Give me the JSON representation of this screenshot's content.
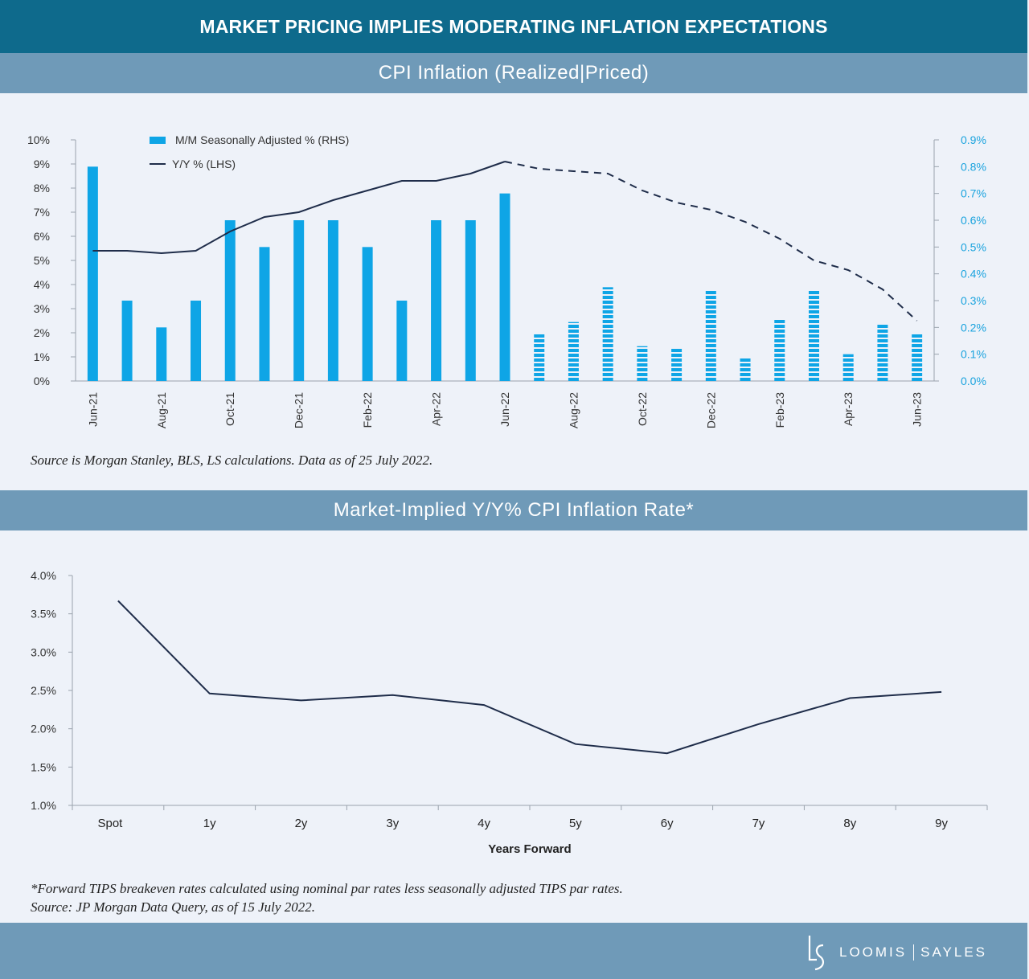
{
  "banner": {
    "title": "MARKET PRICING IMPLIES MODERATING INFLATION EXPECTATIONS"
  },
  "chart1_header": "CPI Inflation (Realized|Priced)",
  "chart2_header": "Market-Implied Y/Y% CPI Inflation Rate*",
  "source1": "Source is Morgan Stanley, BLS, LS calculations. Data as of 25 July 2022.",
  "footnote2_line1": "*Forward TIPS breakeven rates calculated using nominal par rates less seasonally adjusted TIPS par rates.",
  "footnote2_line2": "Source: JP Morgan Data Query, as of 15 July 2022.",
  "logo": {
    "left": "LOOMIS",
    "right": "SAYLES"
  },
  "colors": {
    "bar": "#0ea5e6",
    "line": "#1f2d4a",
    "banner": "#0e6a8c",
    "header": "#6f9ab8",
    "rhs_text": "#1aa3de"
  },
  "chart_data": [
    {
      "type": "bar+line",
      "title": "CPI Inflation (Realized|Priced)",
      "categories": [
        "Jun-21",
        "Jul-21",
        "Aug-21",
        "Sep-21",
        "Oct-21",
        "Nov-21",
        "Dec-21",
        "Jan-22",
        "Feb-22",
        "Mar-22",
        "Apr-22",
        "May-22",
        "Jun-22",
        "Jul-22",
        "Aug-22",
        "Sep-22",
        "Oct-22",
        "Nov-22",
        "Dec-22",
        "Jan-23",
        "Feb-23",
        "Mar-23",
        "Apr-23",
        "May-23",
        "Jun-23"
      ],
      "tick_labels": [
        "Jun-21",
        "Aug-21",
        "Oct-21",
        "Dec-21",
        "Feb-22",
        "Apr-22",
        "Jun-22",
        "Aug-22",
        "Oct-22",
        "Dec-22",
        "Feb-23",
        "Apr-23",
        "Jun-23"
      ],
      "realized_through": "Jun-22",
      "series": [
        {
          "name": "M/M Seasonally Adjusted % (RHS)",
          "axis": "right",
          "kind": "bar",
          "values": [
            0.8,
            0.3,
            0.2,
            0.3,
            0.6,
            0.5,
            0.6,
            0.6,
            0.5,
            0.3,
            0.6,
            0.6,
            0.7,
            0.18,
            0.22,
            0.35,
            0.13,
            0.12,
            0.34,
            0.09,
            0.23,
            0.34,
            0.1,
            0.21,
            0.18
          ]
        },
        {
          "name": "Y/Y % (LHS)",
          "axis": "left",
          "kind": "line",
          "values": [
            5.4,
            5.4,
            5.3,
            5.4,
            6.2,
            6.8,
            7.0,
            7.5,
            7.9,
            8.3,
            8.3,
            8.6,
            9.1,
            8.8,
            8.7,
            8.6,
            7.9,
            7.4,
            7.1,
            6.6,
            5.9,
            5.0,
            4.6,
            3.8,
            2.5
          ]
        }
      ],
      "left_axis": {
        "ylim": [
          0,
          10
        ],
        "ticks": [
          "0%",
          "1%",
          "2%",
          "3%",
          "4%",
          "5%",
          "6%",
          "7%",
          "8%",
          "9%",
          "10%"
        ]
      },
      "right_axis": {
        "ylim": [
          0,
          0.9
        ],
        "ticks": [
          "0.0%",
          "0.1%",
          "0.2%",
          "0.3%",
          "0.4%",
          "0.5%",
          "0.6%",
          "0.7%",
          "0.8%",
          "0.9%"
        ]
      },
      "legend": [
        "M/M Seasonally Adjusted % (RHS)",
        "Y/Y % (LHS)"
      ],
      "legend_position": "top-left"
    },
    {
      "type": "line",
      "title": "Market-Implied Y/Y% CPI Inflation Rate*",
      "categories": [
        "Spot",
        "1y",
        "2y",
        "3y",
        "4y",
        "5y",
        "6y",
        "7y",
        "8y",
        "9y"
      ],
      "values": [
        3.67,
        2.46,
        2.37,
        2.44,
        2.31,
        1.8,
        1.68,
        2.06,
        2.4,
        2.48
      ],
      "xlabel": "Years Forward",
      "ylim": [
        1.0,
        4.0
      ],
      "y_ticks": [
        "1.0%",
        "1.5%",
        "2.0%",
        "2.5%",
        "3.0%",
        "3.5%",
        "4.0%"
      ]
    }
  ]
}
